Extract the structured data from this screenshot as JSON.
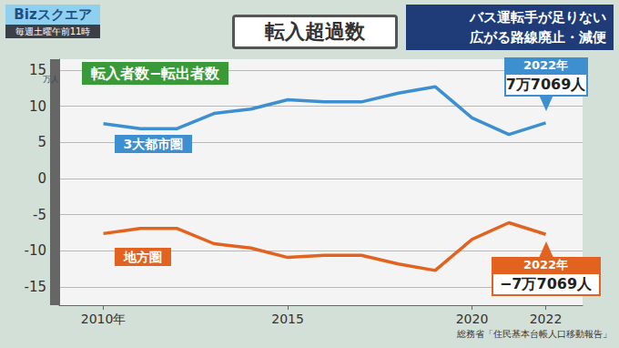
{
  "header": {
    "logo": "Bizスクエア",
    "schedule": "毎週土曜午前11時",
    "headline": [
      "バス運転手が足りない",
      "広がる路線廃止・減便"
    ]
  },
  "chart_data": {
    "type": "line",
    "title": "転入超過数",
    "subtitle": "転入者数−転出者数",
    "ylabel": "万人",
    "source": "総務省「住民基本台帳人口移動報告」",
    "x": [
      2010,
      2011,
      2012,
      2013,
      2014,
      2015,
      2016,
      2017,
      2018,
      2019,
      2020,
      2021,
      2022
    ],
    "series": [
      {
        "name": "3大都市圏",
        "color": "#3d8fd0",
        "values": [
          7.6,
          6.9,
          6.9,
          9.0,
          9.6,
          10.9,
          10.6,
          10.6,
          11.8,
          12.7,
          8.4,
          6.1,
          7.7069
        ],
        "annotation": {
          "x": 2022,
          "text": [
            "2022年",
            "7万7069人"
          ]
        }
      },
      {
        "name": "地方圏",
        "color": "#e2621f",
        "values": [
          -7.6,
          -6.9,
          -6.9,
          -9.0,
          -9.6,
          -10.9,
          -10.6,
          -10.6,
          -11.8,
          -12.7,
          -8.4,
          -6.1,
          -7.7069
        ],
        "annotation": {
          "x": 2022,
          "text": [
            "2022年",
            "−7万7069人"
          ]
        }
      }
    ],
    "xlim": [
      2008.8,
      2023
    ],
    "xticks": [
      {
        "value": 2010,
        "label": "2010年"
      },
      2015,
      2020,
      2022
    ],
    "ylim": [
      -17.5,
      16.5
    ],
    "yticks": [
      -15,
      -10,
      -5,
      0,
      5,
      10,
      15
    ],
    "grid": true
  }
}
